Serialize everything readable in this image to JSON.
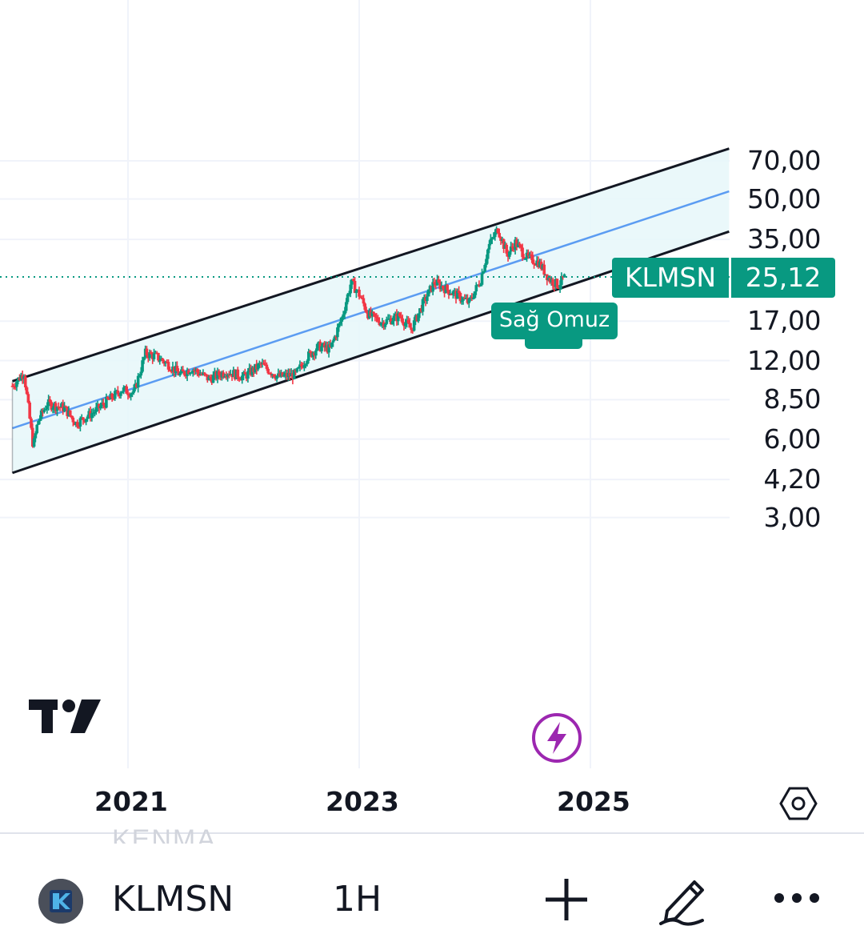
{
  "chart_data": {
    "type": "candlestick",
    "symbol": "KLMSN",
    "interval": "1H",
    "last_price": "25,12",
    "y_scale": "log",
    "ylim": [
      2.9,
      80
    ],
    "y_ticks": [
      "70,00",
      "50,00",
      "35,00",
      "17,00",
      "12,00",
      "8,50",
      "6,00",
      "4,20",
      "3,00"
    ],
    "x_ticks": [
      "2021",
      "2023",
      "2025"
    ],
    "x_range": [
      2019.8,
      2026.2
    ],
    "close_points": [
      [
        2020.0,
        9.6
      ],
      [
        2020.1,
        10.8
      ],
      [
        2020.18,
        5.6
      ],
      [
        2020.22,
        7.0
      ],
      [
        2020.3,
        8.2
      ],
      [
        2020.45,
        7.9
      ],
      [
        2020.55,
        6.9
      ],
      [
        2020.7,
        7.6
      ],
      [
        2020.85,
        8.6
      ],
      [
        2020.95,
        9.3
      ],
      [
        2021.05,
        9.0
      ],
      [
        2021.15,
        12.8
      ],
      [
        2021.25,
        12.4
      ],
      [
        2021.35,
        11.6
      ],
      [
        2021.45,
        10.6
      ],
      [
        2021.55,
        11.2
      ],
      [
        2021.7,
        10.2
      ],
      [
        2021.85,
        10.9
      ],
      [
        2022.0,
        10.4
      ],
      [
        2022.15,
        11.6
      ],
      [
        2022.3,
        10.4
      ],
      [
        2022.45,
        10.6
      ],
      [
        2022.55,
        12.4
      ],
      [
        2022.65,
        13.6
      ],
      [
        2022.75,
        13.3
      ],
      [
        2022.85,
        17.5
      ],
      [
        2022.93,
        24.0
      ],
      [
        2023.0,
        21.5
      ],
      [
        2023.08,
        18.0
      ],
      [
        2023.2,
        16.8
      ],
      [
        2023.35,
        17.8
      ],
      [
        2023.45,
        15.8
      ],
      [
        2023.55,
        19.8
      ],
      [
        2023.65,
        24.0
      ],
      [
        2023.75,
        22.6
      ],
      [
        2023.85,
        21.3
      ],
      [
        2023.95,
        20.0
      ],
      [
        2024.05,
        24.5
      ],
      [
        2024.12,
        33.0
      ],
      [
        2024.2,
        38.5
      ],
      [
        2024.28,
        30.5
      ],
      [
        2024.35,
        34.0
      ],
      [
        2024.45,
        29.8
      ],
      [
        2024.55,
        28.6
      ],
      [
        2024.65,
        24.5
      ],
      [
        2024.72,
        23.4
      ],
      [
        2024.78,
        25.12
      ]
    ],
    "channel": {
      "upper": [
        [
          2020.0,
          10.0
        ],
        [
          2026.2,
          78.0
        ]
      ],
      "middle": [
        [
          2020.0,
          6.6
        ],
        [
          2026.2,
          53.5
        ]
      ],
      "lower": [
        [
          2020.0,
          4.45
        ],
        [
          2026.2,
          37.5
        ]
      ]
    },
    "last_price_line": "dotted",
    "annotation": "Sağ Omuz",
    "grid": true
  },
  "icons": {
    "logo": "tradingview-logo-icon",
    "bolt": "lightning-bolt-icon",
    "settings": "hexagon-settings-icon",
    "ticker": "ticker-logo-icon",
    "add": "plus-icon",
    "draw": "pen-icon",
    "more": "more-dots-icon"
  },
  "colors": {
    "up": "#089981",
    "down": "#f23645",
    "channel_fill": "#e6f7f9",
    "middle_line": "#5b9cf2",
    "label_bg": "#089981",
    "bolt": "#9c27b0"
  },
  "bottom_bar": {
    "ticker": "KLMSN",
    "interval": "1H",
    "ghost_text": "KENMA"
  }
}
